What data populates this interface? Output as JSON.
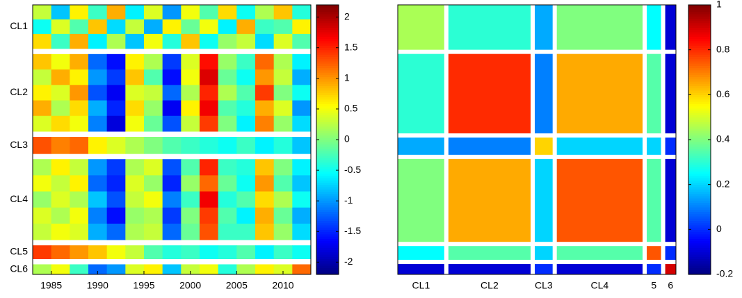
{
  "chart_data": [
    {
      "type": "heatmap",
      "x": [
        1983,
        1985,
        1987,
        1989,
        1991,
        1993,
        1995,
        1997,
        1999,
        2001,
        2003,
        2005,
        2007,
        2009,
        2011
      ],
      "xlim": [
        1983,
        2013
      ],
      "xticks": [
        1985,
        1990,
        1995,
        2000,
        2005,
        2010
      ],
      "clim": [
        -2.2,
        2.2
      ],
      "cticks": [
        -2,
        -1.5,
        -1,
        -0.5,
        0,
        0.5,
        1,
        1.5,
        2
      ],
      "clusters": [
        {
          "name": "CL1",
          "rows": [
            [
              0.3,
              -0.8,
              0.6,
              -0.3,
              0.9,
              -0.6,
              0.4,
              -1.0,
              0.5,
              -0.2,
              0.7,
              -0.5,
              0.2,
              0.8,
              -0.4
            ],
            [
              -0.5,
              0.4,
              -0.2,
              0.8,
              -0.7,
              0.3,
              -0.9,
              0.6,
              -0.1,
              0.5,
              -0.6,
              0.9,
              -0.3,
              -0.2,
              0.6
            ],
            [
              0.7,
              -0.3,
              0.9,
              -0.6,
              0.2,
              -0.8,
              0.5,
              -0.4,
              0.8,
              -0.5,
              0.1,
              0.3,
              -0.7,
              0.4,
              -0.2
            ]
          ]
        },
        {
          "name": "CL2",
          "rows": [
            [
              0.8,
              0.5,
              0.9,
              -1.2,
              -1.6,
              0.6,
              0.2,
              -1.4,
              0.4,
              1.6,
              0.1,
              -0.3,
              1.2,
              0.2,
              -0.6
            ],
            [
              0.3,
              0.9,
              0.6,
              -1.0,
              -1.4,
              0.8,
              -0.2,
              -1.6,
              0.5,
              1.8,
              -0.1,
              -0.5,
              1.0,
              0.3,
              -0.9
            ],
            [
              0.6,
              0.4,
              1.0,
              -1.3,
              -1.7,
              0.4,
              0.3,
              -1.2,
              0.2,
              1.5,
              0.2,
              -0.2,
              1.4,
              0.0,
              -0.5
            ],
            [
              0.9,
              0.2,
              0.7,
              -0.9,
              -1.5,
              0.7,
              0.1,
              -1.7,
              0.6,
              1.7,
              -0.2,
              -0.4,
              0.9,
              0.4,
              -1.0
            ],
            [
              0.4,
              0.7,
              0.5,
              -1.1,
              -1.8,
              0.5,
              -0.1,
              -1.3,
              0.3,
              1.4,
              0.0,
              -0.6,
              1.1,
              0.1,
              -0.7
            ]
          ]
        },
        {
          "name": "CL3",
          "rows": [
            [
              1.3,
              1.1,
              1.2,
              0.6,
              0.4,
              0.2,
              0.0,
              -0.2,
              -0.3,
              -0.4,
              -0.5,
              -0.3,
              -0.6,
              -0.4,
              -0.8
            ]
          ]
        },
        {
          "name": "CL4",
          "rows": [
            [
              0.2,
              0.6,
              0.3,
              -1.0,
              -1.4,
              0.2,
              0.4,
              -1.3,
              -0.2,
              1.5,
              -0.3,
              -0.4,
              0.8,
              0.0,
              -0.6
            ],
            [
              0.5,
              0.3,
              0.6,
              -1.2,
              -1.5,
              0.4,
              0.1,
              -1.5,
              0.1,
              1.2,
              -0.1,
              -0.5,
              1.0,
              -0.2,
              -0.8
            ],
            [
              0.1,
              0.4,
              0.2,
              -0.8,
              -1.3,
              0.3,
              0.5,
              -1.1,
              -0.3,
              1.7,
              -0.4,
              -0.2,
              0.7,
              0.2,
              -0.5
            ],
            [
              0.4,
              0.2,
              0.5,
              -1.1,
              -1.6,
              0.1,
              0.2,
              -1.4,
              0.0,
              1.4,
              -0.2,
              -0.6,
              0.9,
              -0.1,
              -0.9
            ],
            [
              0.3,
              0.5,
              0.4,
              -0.9,
              -1.2,
              0.2,
              0.3,
              -1.2,
              -0.1,
              1.3,
              -0.3,
              -0.3,
              0.8,
              0.1,
              -0.7
            ]
          ]
        },
        {
          "name": "CL5",
          "rows": [
            [
              1.4,
              1.2,
              1.0,
              0.8,
              0.5,
              0.3,
              -0.2,
              -0.4,
              -0.3,
              -0.5,
              -0.4,
              -0.2,
              -0.6,
              -0.3,
              -0.5
            ]
          ]
        },
        {
          "name": "CL6",
          "rows": [
            [
              0.2,
              0.5,
              -0.3,
              -1.2,
              -1.0,
              0.4,
              0.6,
              -0.8,
              0.3,
              0.5,
              -0.4,
              0.2,
              0.6,
              0.4,
              1.2
            ]
          ]
        }
      ]
    },
    {
      "type": "correlation_matrix",
      "categories": [
        "CL1",
        "CL2",
        "CL3",
        "CL4",
        "5",
        "6"
      ],
      "cluster_sizes": [
        13,
        23,
        5,
        24,
        4,
        3
      ],
      "clim": [
        -0.2,
        1
      ],
      "cticks": [
        -0.2,
        0,
        0.2,
        0.4,
        0.6,
        0.8,
        1
      ],
      "values": [
        [
          0.45,
          0.3,
          0.15,
          0.4,
          0.25,
          -0.1
        ],
        [
          0.3,
          0.8,
          0.1,
          0.65,
          0.35,
          -0.1
        ],
        [
          0.15,
          0.1,
          0.6,
          0.2,
          0.2,
          0.0
        ],
        [
          0.4,
          0.65,
          0.2,
          0.75,
          0.35,
          -0.1
        ],
        [
          0.25,
          0.35,
          0.2,
          0.35,
          0.75,
          0.0
        ],
        [
          -0.1,
          -0.1,
          0.0,
          -0.1,
          0.0,
          0.9
        ]
      ]
    }
  ]
}
